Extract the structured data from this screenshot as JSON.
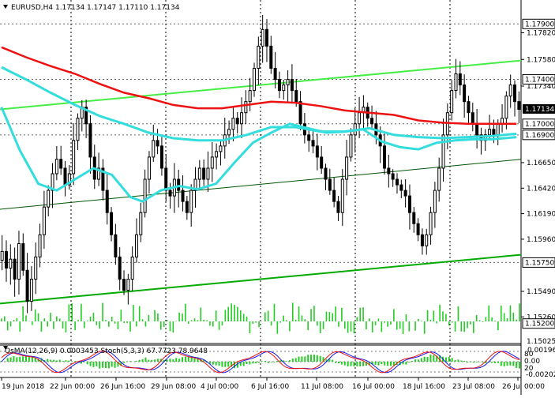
{
  "header": {
    "symbol_line": "EURUSD,H4  1.17134 1.17147 1.17110 1.17134",
    "indicator_line": "OsMA(12,26,9) 0.0003453  Stoch(5,3,3) 67.7723 78.9648"
  },
  "colors": {
    "ma_slow": "#ee1111",
    "ma_mid": "#33dddd",
    "channel_light": "#44ee44",
    "channel_dark": "#00aa00",
    "candle": "#000000",
    "volume": "#22cc22",
    "osma": "#22cc22",
    "stoch_main": "#1a1aee",
    "stoch_signal": "#ee1111",
    "price_badge_bg": "#000000",
    "grid": "#000000"
  },
  "chart_data": {
    "type": "candlestick",
    "symbol": "EURUSD",
    "timeframe": "H4",
    "ohlc_current": {
      "open": 1.17134,
      "high": 1.17147,
      "low": 1.1711,
      "close": 1.17134
    },
    "current_price_label": "1.17134",
    "price_axis": {
      "ylim": [
        1.1502,
        1.1808
      ],
      "plain_ticks": [
        "1.17820",
        "1.17580",
        "1.17340",
        "1.16650",
        "1.16420",
        "1.16190",
        "1.15960",
        "1.15490",
        "1.15260"
      ],
      "boxed_ticks": [
        "1.17900",
        "1.17400",
        "1.17000",
        "1.16900",
        "1.15750",
        "1.15200"
      ],
      "bottom_label": "1.15025"
    },
    "time_axis": {
      "labels": [
        "19 Jun 2018",
        "22 Jun 00:00",
        "26 Jun 16:00",
        "29 Jun 08:00",
        "4 Jul 00:00",
        "6 Jul 16:00",
        "11 Jul 08:00",
        "16 Jul 00:00",
        "18 Jul 16:00",
        "23 Jul 08:00",
        "26 Jul 00:00"
      ]
    },
    "channel_lines": [
      {
        "name": "upper",
        "start": 1.1713,
        "end": 1.1757
      },
      {
        "name": "middle",
        "start": 1.1623,
        "end": 1.1668
      },
      {
        "name": "lower",
        "start": 1.1538,
        "end": 1.1582
      }
    ],
    "ma_slow": [
      [
        0,
        1.1769
      ],
      [
        8,
        1.176
      ],
      [
        16,
        1.1752
      ],
      [
        24,
        1.1745
      ],
      [
        32,
        1.1736
      ],
      [
        40,
        1.1728
      ],
      [
        48,
        1.1723
      ],
      [
        56,
        1.1717
      ],
      [
        64,
        1.1714
      ],
      [
        72,
        1.1714
      ],
      [
        80,
        1.1717
      ],
      [
        88,
        1.172
      ],
      [
        96,
        1.1719
      ],
      [
        104,
        1.1716
      ],
      [
        112,
        1.1712
      ],
      [
        120,
        1.171
      ],
      [
        128,
        1.1708
      ],
      [
        136,
        1.1703
      ],
      [
        144,
        1.1701
      ],
      [
        152,
        1.17
      ],
      [
        160,
        1.17
      ],
      [
        168,
        1.17
      ]
    ],
    "ma_mid": [
      [
        0,
        1.1751
      ],
      [
        8,
        1.174
      ],
      [
        16,
        1.1728
      ],
      [
        24,
        1.1717
      ],
      [
        32,
        1.1707
      ],
      [
        40,
        1.17
      ],
      [
        48,
        1.1692
      ],
      [
        56,
        1.1687
      ],
      [
        64,
        1.1685
      ],
      [
        72,
        1.1685
      ],
      [
        80,
        1.169
      ],
      [
        88,
        1.1697
      ],
      [
        96,
        1.1697
      ],
      [
        104,
        1.1693
      ],
      [
        112,
        1.1693
      ],
      [
        120,
        1.1696
      ],
      [
        128,
        1.169
      ],
      [
        136,
        1.1688
      ],
      [
        144,
        1.1687
      ],
      [
        152,
        1.1688
      ],
      [
        160,
        1.1689
      ],
      [
        168,
        1.1691
      ]
    ],
    "ma_fast": [
      [
        0,
        1.1715
      ],
      [
        6,
        1.1676
      ],
      [
        12,
        1.1646
      ],
      [
        18,
        1.164
      ],
      [
        24,
        1.165
      ],
      [
        30,
        1.166
      ],
      [
        36,
        1.1654
      ],
      [
        42,
        1.1634
      ],
      [
        46,
        1.163
      ],
      [
        52,
        1.164
      ],
      [
        58,
        1.1644
      ],
      [
        64,
        1.1641
      ],
      [
        70,
        1.1646
      ],
      [
        76,
        1.1665
      ],
      [
        82,
        1.1683
      ],
      [
        88,
        1.1692
      ],
      [
        94,
        1.17
      ],
      [
        100,
        1.1696
      ],
      [
        106,
        1.1692
      ],
      [
        112,
        1.1693
      ],
      [
        118,
        1.1695
      ],
      [
        124,
        1.1684
      ],
      [
        130,
        1.1679
      ],
      [
        136,
        1.1677
      ],
      [
        142,
        1.1683
      ],
      [
        148,
        1.1685
      ],
      [
        154,
        1.1686
      ],
      [
        160,
        1.1686
      ],
      [
        168,
        1.1688
      ]
    ],
    "close_series": [
      1.1585,
      1.157,
      1.1578,
      1.156,
      1.1592,
      1.1568,
      1.154,
      1.156,
      1.158,
      1.16,
      1.1625,
      1.164,
      1.1655,
      1.1668,
      1.166,
      1.1645,
      1.1655,
      1.1685,
      1.1705,
      1.1715,
      1.17,
      1.167,
      1.165,
      1.166,
      1.164,
      1.162,
      1.16,
      1.158,
      1.156,
      1.155,
      1.156,
      1.158,
      1.16,
      1.162,
      1.165,
      1.167,
      1.1685,
      1.168,
      1.166,
      1.164,
      1.1635,
      1.165,
      1.164,
      1.163,
      1.162,
      1.164,
      1.165,
      1.166,
      1.165,
      1.166,
      1.167,
      1.1675,
      1.168,
      1.169,
      1.1695,
      1.1705,
      1.17,
      1.171,
      1.172,
      1.173,
      1.175,
      1.177,
      1.1785,
      1.177,
      1.175,
      1.174,
      1.173,
      1.1735,
      1.174,
      1.173,
      1.172,
      1.17,
      1.169,
      1.1685,
      1.168,
      1.167,
      1.166,
      1.165,
      1.164,
      1.163,
      1.162,
      1.165,
      1.167,
      1.169,
      1.17,
      1.171,
      1.1715,
      1.1705,
      1.17,
      1.169,
      1.168,
      1.166,
      1.1655,
      1.165,
      1.1645,
      1.164,
      1.1635,
      1.162,
      1.161,
      1.16,
      1.159,
      1.16,
      1.162,
      1.164,
      1.166,
      1.169,
      1.171,
      1.173,
      1.1745,
      1.1735,
      1.172,
      1.171,
      1.17,
      1.169,
      1.1685,
      1.169,
      1.1695,
      1.169,
      1.17,
      1.1705,
      1.1725,
      1.1735,
      1.172,
      1.1713
    ],
    "volume_panel": {
      "description_free": true
    },
    "oscillator": {
      "name": "OsMA(12,26,9)",
      "value": "0.0003453",
      "stoch_name": "Stoch(5,3,3)",
      "stoch_main": "67.7723",
      "stoch_signal": "78.9648",
      "axis_labels": [
        "0.001963",
        "80",
        "0.00",
        "20",
        "-0.00202"
      ]
    }
  }
}
